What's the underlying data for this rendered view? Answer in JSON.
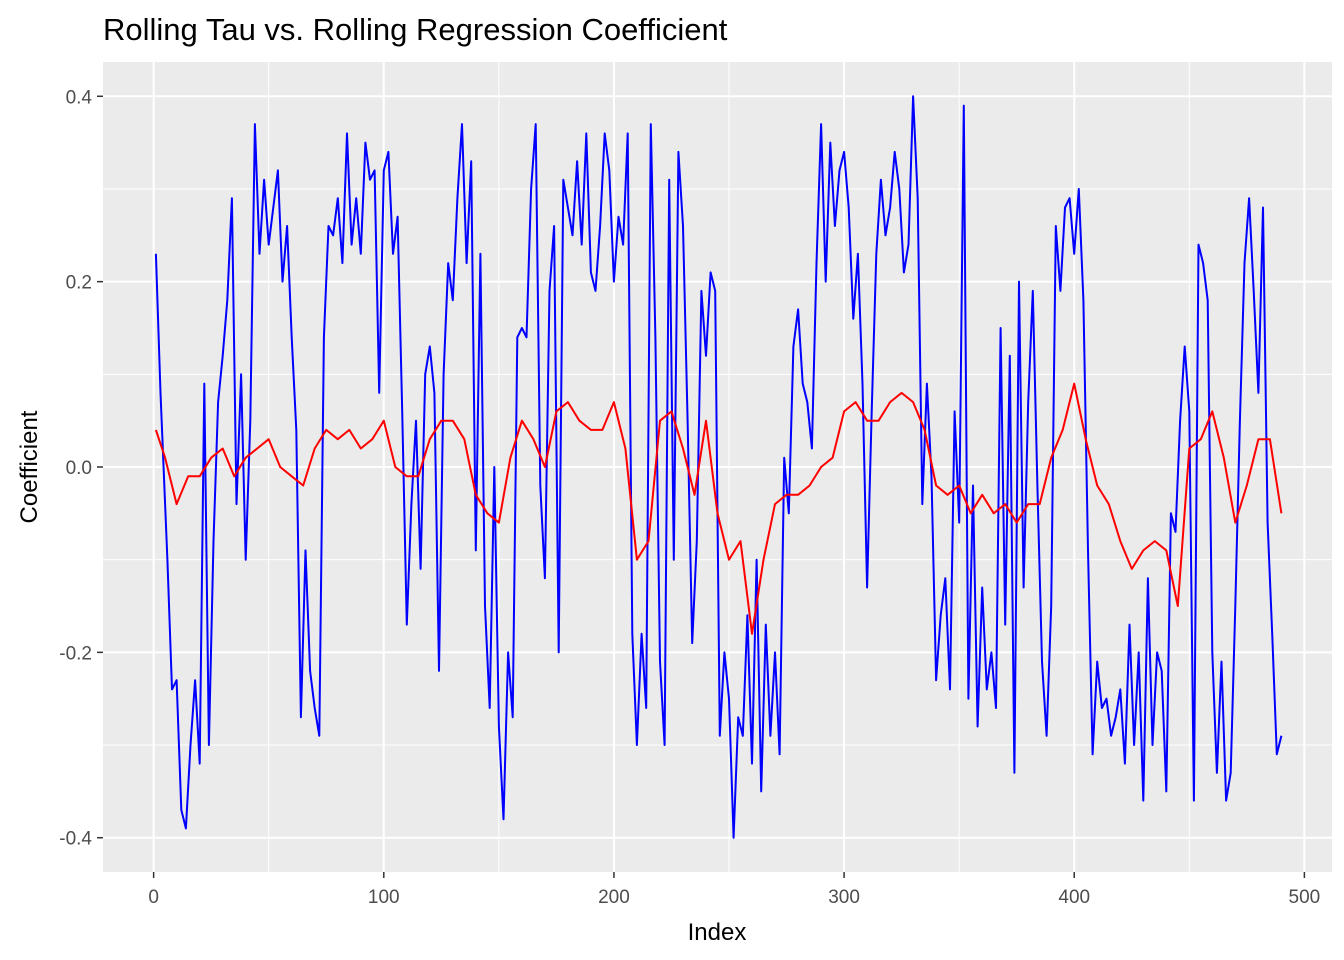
{
  "chart_data": {
    "type": "line",
    "title": "Rolling Tau vs. Rolling Regression Coefficient",
    "xlabel": "Index",
    "ylabel": "Coefficient",
    "xlim": [
      -22,
      512
    ],
    "ylim": [
      -0.437,
      0.437
    ],
    "x_ticks": [
      0,
      100,
      200,
      300,
      400,
      500
    ],
    "x_tick_labels": [
      "0",
      "100",
      "200",
      "300",
      "400",
      "500"
    ],
    "y_ticks": [
      -0.4,
      -0.2,
      0.0,
      0.2,
      0.4
    ],
    "y_tick_labels": [
      "-0.4",
      "-0.2",
      "0.0",
      "0.2",
      "0.4"
    ],
    "grid": true,
    "legend": "none",
    "panel_color": "#ebebeb",
    "grid_color": "#ffffff",
    "series": [
      {
        "color": "#0000ff",
        "x": [
          1,
          3,
          6,
          8,
          10,
          12,
          14,
          16,
          18,
          20,
          22,
          24,
          26,
          28,
          30,
          32,
          34,
          36,
          38,
          40,
          42,
          44,
          46,
          48,
          50,
          52,
          54,
          56,
          58,
          60,
          62,
          64,
          66,
          68,
          70,
          72,
          74,
          76,
          78,
          80,
          82,
          84,
          86,
          88,
          90,
          92,
          94,
          96,
          98,
          100,
          102,
          104,
          106,
          108,
          110,
          112,
          114,
          116,
          118,
          120,
          122,
          124,
          126,
          128,
          130,
          132,
          134,
          136,
          138,
          140,
          142,
          144,
          146,
          148,
          150,
          152,
          154,
          156,
          158,
          160,
          162,
          164,
          166,
          168,
          170,
          172,
          174,
          176,
          178,
          180,
          182,
          184,
          186,
          188,
          190,
          192,
          194,
          196,
          198,
          200,
          202,
          204,
          206,
          208,
          210,
          212,
          214,
          216,
          218,
          220,
          222,
          224,
          226,
          228,
          230,
          232,
          234,
          236,
          238,
          240,
          242,
          244,
          246,
          248,
          250,
          252,
          254,
          256,
          258,
          260,
          262,
          264,
          266,
          268,
          270,
          272,
          274,
          276,
          278,
          280,
          282,
          284,
          286,
          288,
          290,
          292,
          294,
          296,
          298,
          300,
          302,
          304,
          306,
          308,
          310,
          312,
          314,
          316,
          318,
          320,
          322,
          324,
          326,
          328,
          330,
          332,
          334,
          336,
          338,
          340,
          342,
          344,
          346,
          348,
          350,
          352,
          354,
          356,
          358,
          360,
          362,
          364,
          366,
          368,
          370,
          372,
          374,
          376,
          378,
          380,
          382,
          384,
          386,
          388,
          390,
          392,
          394,
          396,
          398,
          400,
          402,
          404,
          406,
          408,
          410,
          412,
          414,
          416,
          418,
          420,
          422,
          424,
          426,
          428,
          430,
          432,
          434,
          436,
          438,
          440,
          442,
          444,
          446,
          448,
          450,
          452,
          454,
          456,
          458,
          460,
          462,
          464,
          466,
          468,
          470,
          472,
          474,
          476,
          478,
          480,
          482,
          484,
          486,
          488,
          490
        ],
        "y": [
          0.23,
          0.08,
          -0.1,
          -0.24,
          -0.23,
          -0.37,
          -0.39,
          -0.3,
          -0.23,
          -0.32,
          0.09,
          -0.3,
          -0.08,
          0.07,
          0.12,
          0.18,
          0.29,
          -0.04,
          0.1,
          -0.1,
          0.05,
          0.37,
          0.23,
          0.31,
          0.24,
          0.28,
          0.32,
          0.2,
          0.26,
          0.14,
          0.04,
          -0.27,
          -0.09,
          -0.22,
          -0.26,
          -0.29,
          0.14,
          0.26,
          0.25,
          0.29,
          0.22,
          0.36,
          0.24,
          0.29,
          0.23,
          0.35,
          0.31,
          0.32,
          0.08,
          0.32,
          0.34,
          0.23,
          0.27,
          0.06,
          -0.17,
          -0.04,
          0.05,
          -0.11,
          0.1,
          0.13,
          0.08,
          -0.22,
          0.1,
          0.22,
          0.18,
          0.29,
          0.37,
          0.22,
          0.33,
          -0.09,
          0.23,
          -0.15,
          -0.26,
          -0.0,
          -0.28,
          -0.38,
          -0.2,
          -0.27,
          0.14,
          0.15,
          0.14,
          0.3,
          0.37,
          -0.02,
          -0.12,
          0.19,
          0.26,
          -0.2,
          0.31,
          0.28,
          0.25,
          0.33,
          0.24,
          0.36,
          0.21,
          0.19,
          0.26,
          0.36,
          0.32,
          0.2,
          0.27,
          0.24,
          0.36,
          -0.18,
          -0.3,
          -0.18,
          -0.26,
          0.37,
          0.14,
          -0.21,
          -0.3,
          0.31,
          -0.1,
          0.34,
          0.26,
          0.05,
          -0.19,
          -0.08,
          0.19,
          0.12,
          0.21,
          0.19,
          -0.29,
          -0.2,
          -0.25,
          -0.4,
          -0.27,
          -0.29,
          -0.16,
          -0.32,
          -0.1,
          -0.35,
          -0.17,
          -0.29,
          -0.2,
          -0.31,
          0.01,
          -0.05,
          0.13,
          0.17,
          0.09,
          0.07,
          0.02,
          0.22,
          0.37,
          0.2,
          0.35,
          0.26,
          0.32,
          0.34,
          0.28,
          0.16,
          0.23,
          0.09,
          -0.13,
          0.06,
          0.23,
          0.31,
          0.25,
          0.28,
          0.34,
          0.3,
          0.21,
          0.24,
          0.4,
          0.29,
          -0.04,
          0.09,
          -0.01,
          -0.23,
          -0.16,
          -0.12,
          -0.24,
          0.06,
          -0.06,
          0.39,
          -0.25,
          -0.02,
          -0.28,
          -0.13,
          -0.24,
          -0.2,
          -0.26,
          0.15,
          -0.17,
          0.12,
          -0.33,
          0.2,
          -0.13,
          0.07,
          0.19,
          -0.02,
          -0.21,
          -0.29,
          -0.15,
          0.26,
          0.19,
          0.28,
          0.29,
          0.23,
          0.3,
          0.18,
          -0.09,
          -0.31,
          -0.21,
          -0.26,
          -0.25,
          -0.29,
          -0.27,
          -0.24,
          -0.32,
          -0.17,
          -0.3,
          -0.2,
          -0.36,
          -0.12,
          -0.3,
          -0.2,
          -0.22,
          -0.35,
          -0.05,
          -0.07,
          0.05,
          0.13,
          0.06,
          -0.36,
          0.24,
          0.22,
          0.18,
          -0.2,
          -0.33,
          -0.21,
          -0.36,
          -0.33,
          -0.15,
          0.05,
          0.22,
          0.29,
          0.19,
          0.08,
          0.28,
          -0.06,
          -0.18,
          -0.31,
          -0.29
        ]
      },
      {
        "color": "#ff0000",
        "x": [
          1,
          5,
          10,
          15,
          20,
          25,
          30,
          35,
          40,
          45,
          50,
          55,
          60,
          65,
          70,
          75,
          80,
          85,
          90,
          95,
          100,
          105,
          110,
          115,
          120,
          125,
          130,
          135,
          140,
          145,
          150,
          155,
          160,
          165,
          170,
          175,
          180,
          185,
          190,
          195,
          200,
          205,
          210,
          215,
          220,
          225,
          230,
          235,
          240,
          245,
          250,
          255,
          260,
          265,
          270,
          275,
          280,
          285,
          290,
          295,
          300,
          305,
          310,
          315,
          320,
          325,
          330,
          335,
          340,
          345,
          350,
          355,
          360,
          365,
          370,
          375,
          380,
          385,
          390,
          395,
          400,
          405,
          410,
          415,
          420,
          425,
          430,
          435,
          440,
          445,
          450,
          455,
          460,
          465,
          470,
          475,
          480,
          485,
          490
        ],
        "y": [
          0.04,
          0.01,
          -0.04,
          -0.01,
          -0.01,
          0.01,
          0.02,
          -0.01,
          0.01,
          0.02,
          0.03,
          0.0,
          -0.01,
          -0.02,
          0.02,
          0.04,
          0.03,
          0.04,
          0.02,
          0.03,
          0.05,
          0.0,
          -0.01,
          -0.01,
          0.03,
          0.05,
          0.05,
          0.03,
          -0.03,
          -0.05,
          -0.06,
          0.01,
          0.05,
          0.03,
          -0.0,
          0.06,
          0.07,
          0.05,
          0.04,
          0.04,
          0.07,
          0.02,
          -0.1,
          -0.08,
          0.05,
          0.06,
          0.02,
          -0.03,
          0.05,
          -0.05,
          -0.1,
          -0.08,
          -0.18,
          -0.1,
          -0.04,
          -0.03,
          -0.03,
          -0.02,
          0.0,
          0.01,
          0.06,
          0.07,
          0.05,
          0.05,
          0.07,
          0.08,
          0.07,
          0.04,
          -0.02,
          -0.03,
          -0.02,
          -0.05,
          -0.03,
          -0.05,
          -0.04,
          -0.06,
          -0.04,
          -0.04,
          0.01,
          0.04,
          0.09,
          0.03,
          -0.02,
          -0.04,
          -0.08,
          -0.11,
          -0.09,
          -0.08,
          -0.09,
          -0.15,
          0.02,
          0.03,
          0.06,
          0.01,
          -0.06,
          -0.02,
          0.03,
          0.03,
          -0.05
        ]
      }
    ]
  }
}
